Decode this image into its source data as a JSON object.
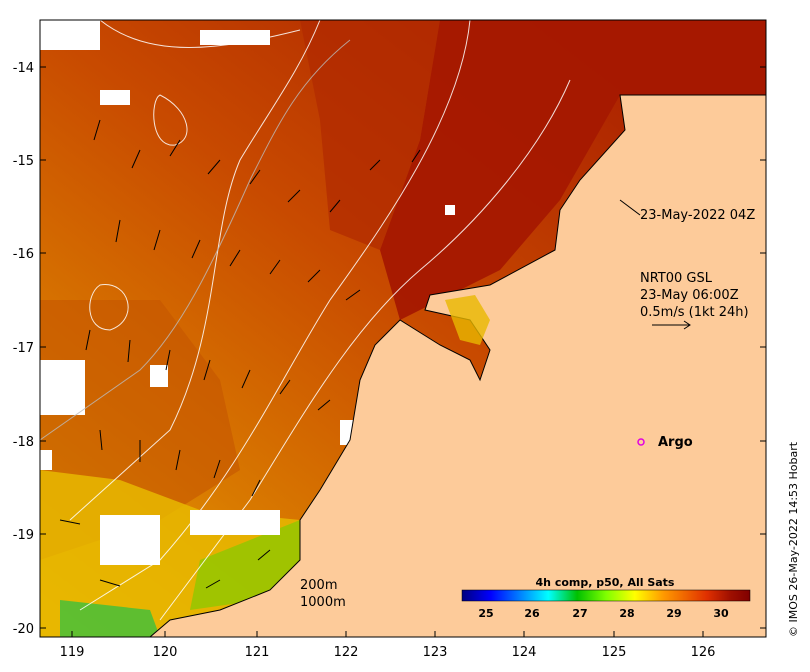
{
  "map": {
    "x_ticks": [
      "119",
      "120",
      "121",
      "122",
      "123",
      "124",
      "125",
      "126"
    ],
    "y_ticks": [
      "-14",
      "-15",
      "-16",
      "-17",
      "-18",
      "-19",
      "-20"
    ]
  },
  "annotations": {
    "timestamp": "23-May-2022 04Z",
    "current_model": "NRT00 GSL",
    "current_time": "23-May 06:00Z",
    "current_scale": "0.5m/s (1kt 24h)",
    "argo_label": "Argo",
    "contour_200": "200m",
    "contour_1000": "1000m"
  },
  "colorbar": {
    "title": "4h comp, p50, All Sats",
    "ticks": [
      "25",
      "26",
      "27",
      "28",
      "29",
      "30"
    ],
    "stops": [
      "#00007f",
      "#0000ff",
      "#007fff",
      "#00ffff",
      "#00c000",
      "#7fff00",
      "#ffff00",
      "#ff9900",
      "#e03000",
      "#a01000",
      "#800000"
    ]
  },
  "credit": "© IMOS 26-May-2022 14:53 Hobart",
  "colors": {
    "land": "#fdcb9a",
    "sst_hot": "#a51800",
    "sst_warm": "#d65f00",
    "sst_cool": "#e9c000",
    "sst_green": "#3cc03c",
    "argo": "#e000e0"
  }
}
